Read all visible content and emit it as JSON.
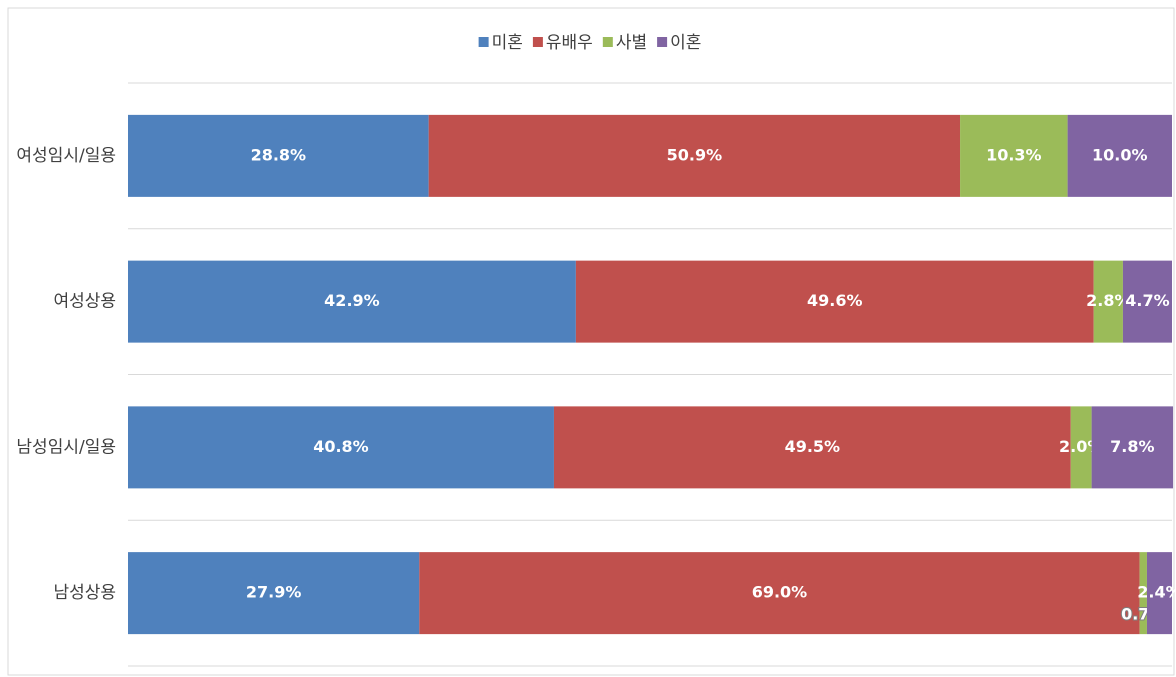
{
  "chart_data": {
    "type": "stacked_barh",
    "categories": [
      "여성임시/일용",
      "여성상용",
      "남성임시/일용",
      "남성상용"
    ],
    "series": [
      {
        "name": "미혼",
        "color": "#4f81bd",
        "values": [
          28.8,
          42.9,
          40.8,
          27.9
        ],
        "value_labels": [
          "28.8%",
          "42.9%",
          "40.8%",
          "27.9%"
        ]
      },
      {
        "name": "유배우",
        "color": "#c0504d",
        "values": [
          50.9,
          49.6,
          49.5,
          69.0
        ],
        "value_labels": [
          "50.9%",
          "49.6%",
          "49.5%",
          "69.0%"
        ]
      },
      {
        "name": "사별",
        "color": "#9bbb59",
        "values": [
          10.3,
          2.8,
          2.0,
          0.7
        ],
        "value_labels": [
          "10.3%",
          "2.8%",
          "2.0%",
          "0.7%"
        ]
      },
      {
        "name": "이혼",
        "color": "#8064a2",
        "values": [
          10.0,
          4.7,
          7.8,
          2.4
        ],
        "value_labels": [
          "10.0%",
          "4.7%",
          "7.8%",
          "2.4%"
        ]
      }
    ],
    "xlim": [
      0,
      100
    ],
    "legend": "top",
    "grid": true
  }
}
